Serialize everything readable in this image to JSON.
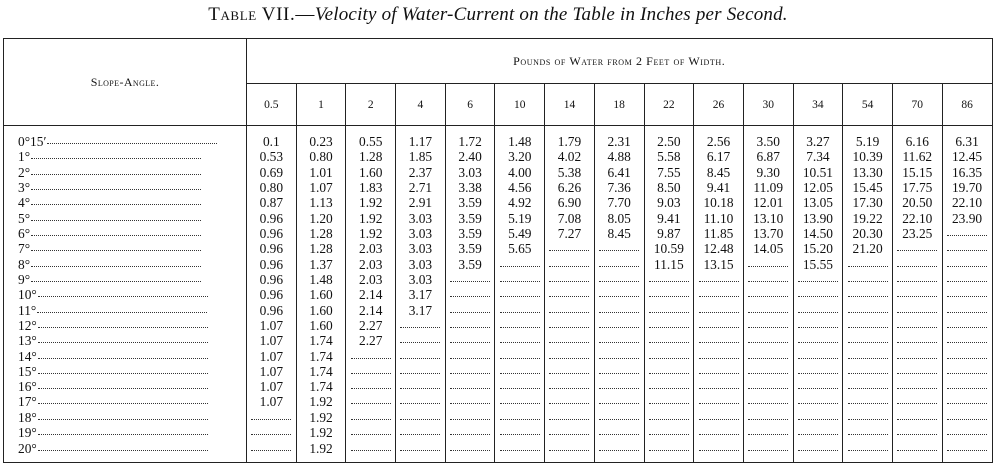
{
  "title": {
    "lead": "Table VII.—",
    "sub": "Velocity of Water-Current on the Table in Inches per Second."
  },
  "table": {
    "slope_header": "Slope-Angle.",
    "group_header": "Pounds of Water from 2 Feet of Width.",
    "columns": [
      "0.5",
      "1",
      "2",
      "4",
      "6",
      "10",
      "14",
      "18",
      "22",
      "26",
      "30",
      "34",
      "54",
      "70",
      "86"
    ],
    "rows": [
      {
        "angle": "0°15′",
        "values": [
          "0.1",
          "0.23",
          "0.55",
          "1.17",
          "1.72",
          "1.48",
          "1.79",
          "2.31",
          "2.50",
          "2.56",
          "3.50",
          "3.27",
          "5.19",
          "6.16",
          "6.31"
        ]
      },
      {
        "angle": "1°",
        "values": [
          "0.53",
          "0.80",
          "1.28",
          "1.85",
          "2.40",
          "3.20",
          "4.02",
          "4.88",
          "5.58",
          "6.17",
          "6.87",
          "7.34",
          "10.39",
          "11.62",
          "12.45"
        ]
      },
      {
        "angle": "2°",
        "values": [
          "0.69",
          "1.01",
          "1.60",
          "2.37",
          "3.03",
          "4.00",
          "5.38",
          "6.41",
          "7.55",
          "8.45",
          "9.30",
          "10.51",
          "13.30",
          "15.15",
          "16.35"
        ]
      },
      {
        "angle": "3°",
        "values": [
          "0.80",
          "1.07",
          "1.83",
          "2.71",
          "3.38",
          "4.56",
          "6.26",
          "7.36",
          "8.50",
          "9.41",
          "11.09",
          "12.05",
          "15.45",
          "17.75",
          "19.70"
        ]
      },
      {
        "angle": "4°",
        "values": [
          "0.87",
          "1.13",
          "1.92",
          "2.91",
          "3.59",
          "4.92",
          "6.90",
          "7.70",
          "9.03",
          "10.18",
          "12.01",
          "13.05",
          "17.30",
          "20.50",
          "22.10"
        ]
      },
      {
        "angle": "5°",
        "values": [
          "0.96",
          "1.20",
          "1.92",
          "3.03",
          "3.59",
          "5.19",
          "7.08",
          "8.05",
          "9.41",
          "11.10",
          "13.10",
          "13.90",
          "19.22",
          "22.10",
          "23.90"
        ]
      },
      {
        "angle": "6°",
        "values": [
          "0.96",
          "1.28",
          "1.92",
          "3.03",
          "3.59",
          "5.49",
          "7.27",
          "8.45",
          "9.87",
          "11.85",
          "13.70",
          "14.50",
          "20.30",
          "23.25",
          ""
        ]
      },
      {
        "angle": "7°",
        "values": [
          "0.96",
          "1.28",
          "2.03",
          "3.03",
          "3.59",
          "5.65",
          "",
          "",
          "10.59",
          "12.48",
          "14.05",
          "15.20",
          "21.20",
          "",
          ""
        ]
      },
      {
        "angle": "8°",
        "values": [
          "0.96",
          "1.37",
          "2.03",
          "3.03",
          "3.59",
          "",
          "",
          "",
          "11.15",
          "13.15",
          "",
          "15.55",
          "",
          "",
          ""
        ]
      },
      {
        "angle": "9°",
        "values": [
          "0.96",
          "1.48",
          "2.03",
          "3.03",
          "",
          "",
          "",
          "",
          "",
          "",
          "",
          "",
          "",
          "",
          ""
        ]
      },
      {
        "angle": "10°",
        "values": [
          "0.96",
          "1.60",
          "2.14",
          "3.17",
          "",
          "",
          "",
          "",
          "",
          "",
          "",
          "",
          "",
          "",
          ""
        ]
      },
      {
        "angle": "11°",
        "values": [
          "0.96",
          "1.60",
          "2.14",
          "3.17",
          "",
          "",
          "",
          "",
          "",
          "",
          "",
          "",
          "",
          "",
          ""
        ]
      },
      {
        "angle": "12°",
        "values": [
          "1.07",
          "1.60",
          "2.27",
          "",
          "",
          "",
          "",
          "",
          "",
          "",
          "",
          "",
          "",
          "",
          ""
        ]
      },
      {
        "angle": "13°",
        "values": [
          "1.07",
          "1.74",
          "2.27",
          "",
          "",
          "",
          "",
          "",
          "",
          "",
          "",
          "",
          "",
          "",
          ""
        ]
      },
      {
        "angle": "14°",
        "values": [
          "1.07",
          "1.74",
          "",
          "",
          "",
          "",
          "",
          "",
          "",
          "",
          "",
          "",
          "",
          "",
          ""
        ]
      },
      {
        "angle": "15°",
        "values": [
          "1.07",
          "1.74",
          "",
          "",
          "",
          "",
          "",
          "",
          "",
          "",
          "",
          "",
          "",
          "",
          ""
        ]
      },
      {
        "angle": "16°",
        "values": [
          "1.07",
          "1.74",
          "",
          "",
          "",
          "",
          "",
          "",
          "",
          "",
          "",
          "",
          "",
          "",
          ""
        ]
      },
      {
        "angle": "17°",
        "values": [
          "1.07",
          "1.92",
          "",
          "",
          "",
          "",
          "",
          "",
          "",
          "",
          "",
          "",
          "",
          "",
          ""
        ]
      },
      {
        "angle": "18°",
        "values": [
          "",
          "1.92",
          "",
          "",
          "",
          "",
          "",
          "",
          "",
          "",
          "",
          "",
          "",
          "",
          ""
        ]
      },
      {
        "angle": "19°",
        "values": [
          "",
          "1.92",
          "",
          "",
          "",
          "",
          "",
          "",
          "",
          "",
          "",
          "",
          "",
          "",
          ""
        ]
      },
      {
        "angle": "20°",
        "values": [
          "",
          "1.92",
          "",
          "",
          "",
          "",
          "",
          "",
          "",
          "",
          "",
          "",
          "",
          "",
          ""
        ]
      }
    ]
  }
}
